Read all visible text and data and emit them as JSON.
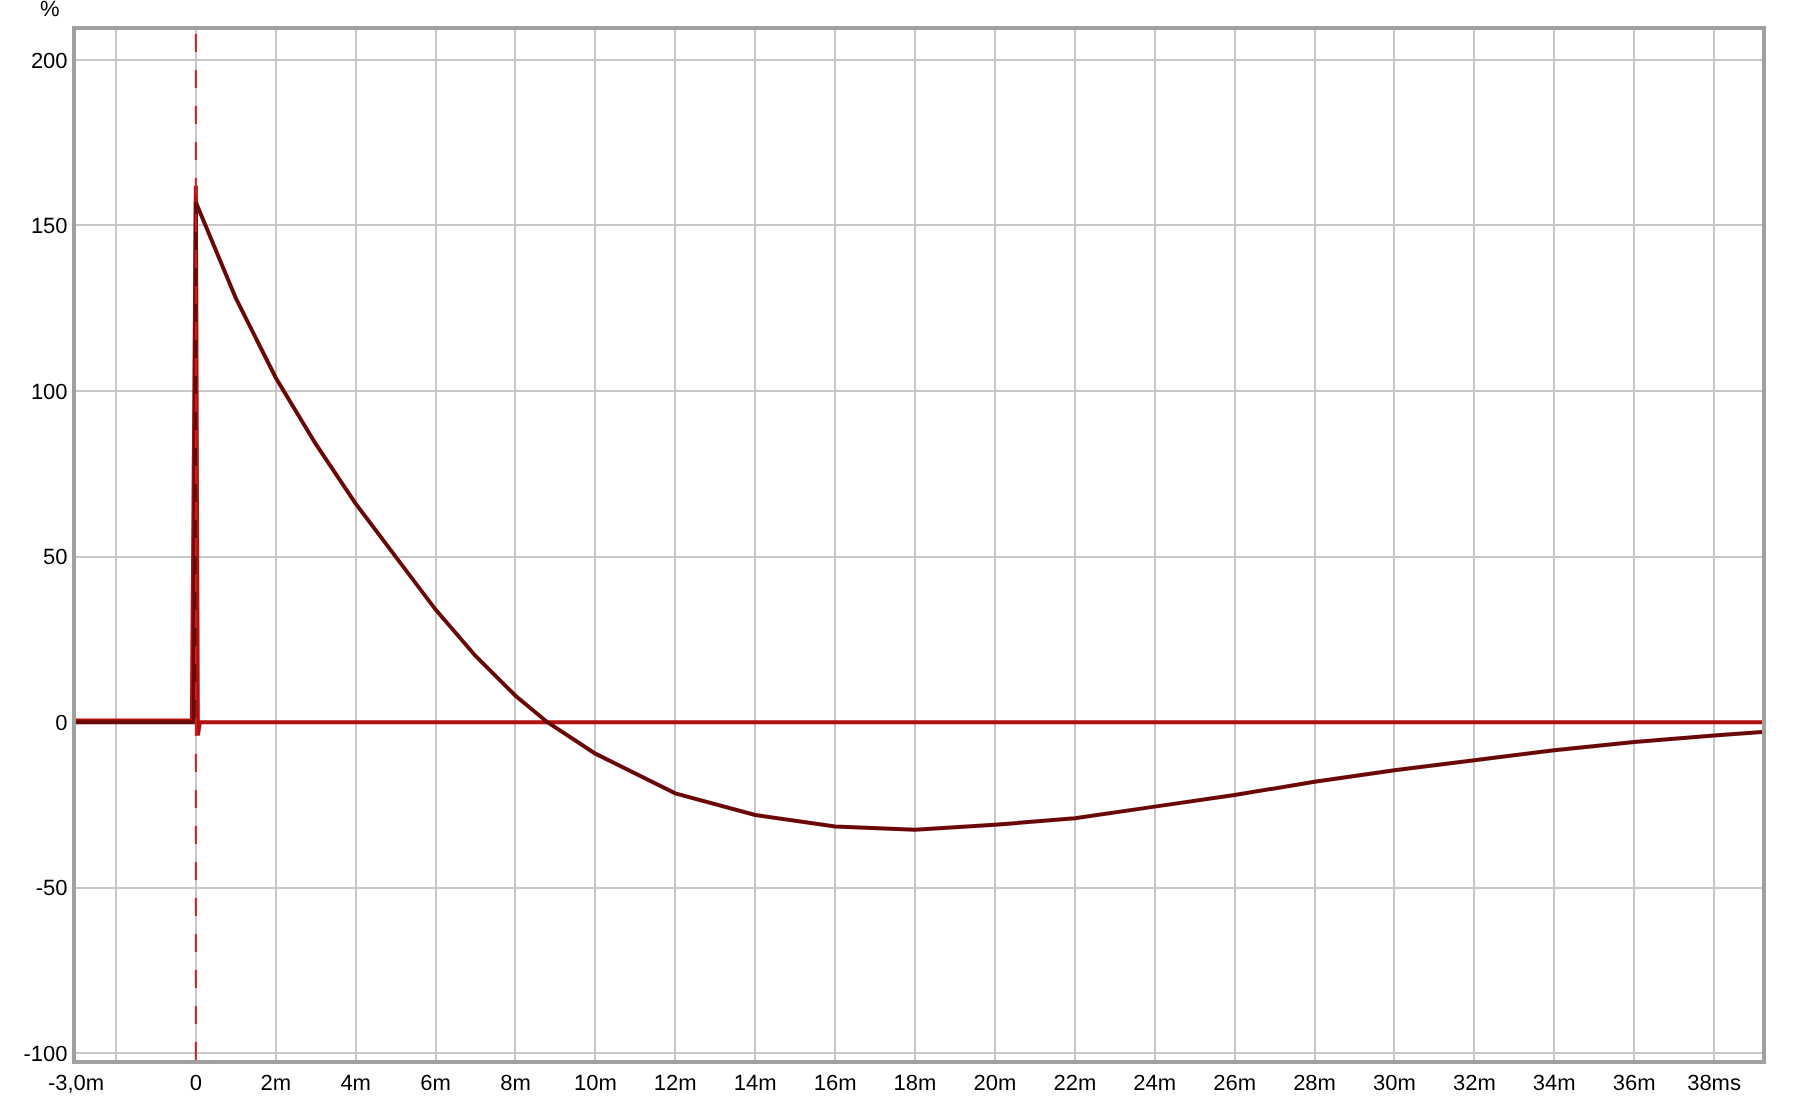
{
  "chart_data": {
    "type": "line",
    "ylabel": "%",
    "xlim": [
      -3.0,
      39.2
    ],
    "ylim": [
      -102,
      209
    ],
    "xticks": [
      {
        "value": -3,
        "label": "-3,0m"
      },
      {
        "value": -2,
        "label": null
      },
      0,
      {
        "value": 2,
        "label": "2m"
      },
      {
        "value": 4,
        "label": "4m"
      },
      {
        "value": 6,
        "label": "6m"
      },
      {
        "value": 8,
        "label": "8m"
      },
      {
        "value": 10,
        "label": "10m"
      },
      {
        "value": 12,
        "label": "12m"
      },
      {
        "value": 14,
        "label": "14m"
      },
      {
        "value": 16,
        "label": "16m"
      },
      {
        "value": 18,
        "label": "18m"
      },
      {
        "value": 20,
        "label": "20m"
      },
      {
        "value": 22,
        "label": "22m"
      },
      {
        "value": 24,
        "label": "24m"
      },
      {
        "value": 26,
        "label": "26m"
      },
      {
        "value": 28,
        "label": "28m"
      },
      {
        "value": 30,
        "label": "30m"
      },
      {
        "value": 32,
        "label": "32m"
      },
      {
        "value": 34,
        "label": "34m"
      },
      {
        "value": 36,
        "label": "36m"
      },
      {
        "value": 38,
        "label": "38ms"
      }
    ],
    "yticks": [
      -100,
      -50,
      0,
      50,
      100,
      150,
      200
    ],
    "grid": true,
    "line_style": "solid",
    "marker": "none",
    "ref_lines": [
      {
        "axis": "x",
        "value": 0,
        "color": "#cc2020",
        "line_style": "dashed"
      }
    ],
    "series": [
      {
        "color": "#b01010",
        "x": [
          -3,
          -0.1,
          0,
          0.05,
          0.1,
          0.3,
          39.2
        ],
        "values": [
          0.5,
          0.5,
          162,
          -4,
          0,
          0,
          0
        ]
      },
      {
        "color": "#6a0808",
        "x": [
          -3,
          -0.05,
          0,
          1,
          2,
          3,
          4,
          5,
          6,
          7,
          8,
          8.8,
          10,
          12,
          14,
          16,
          18,
          20,
          22,
          24,
          26,
          28,
          30,
          32,
          34,
          36,
          38,
          39.2
        ],
        "values": [
          0,
          0,
          157,
          128,
          104,
          84,
          66,
          50,
          34,
          20,
          8,
          0,
          -9.5,
          -21.5,
          -28,
          -31.5,
          -32.5,
          -31,
          -29,
          -25.5,
          -22,
          -18,
          -14.5,
          -11.5,
          -8.5,
          -6,
          -4,
          -3
        ]
      }
    ]
  }
}
